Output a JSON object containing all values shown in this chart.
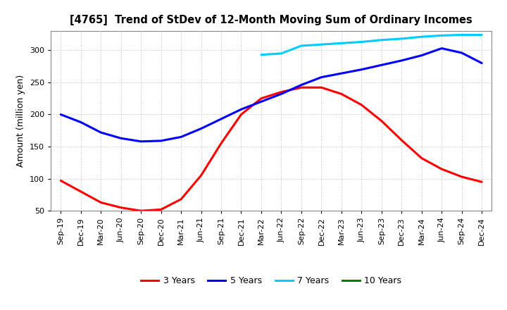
{
  "title": "[4765]  Trend of StDev of 12-Month Moving Sum of Ordinary Incomes",
  "ylabel": "Amount (million yen)",
  "ylim": [
    50,
    330
  ],
  "yticks": [
    50,
    100,
    150,
    200,
    250,
    300
  ],
  "background_color": "#ffffff",
  "plot_bg_color": "#ffffff",
  "grid_color": "#b0b0b0",
  "series": {
    "3 Years": {
      "color": "#ff0000",
      "x_indices": [
        0,
        1,
        2,
        3,
        4,
        5,
        6,
        7,
        8,
        9,
        10,
        11,
        12,
        13,
        14,
        15,
        16,
        17,
        18,
        19,
        20,
        21
      ],
      "y": [
        97,
        80,
        63,
        55,
        50,
        52,
        68,
        105,
        155,
        200,
        225,
        235,
        242,
        242,
        232,
        215,
        190,
        160,
        132,
        115,
        103,
        95
      ]
    },
    "5 Years": {
      "color": "#0000ff",
      "x_indices": [
        0,
        1,
        2,
        3,
        4,
        5,
        6,
        7,
        8,
        9,
        10,
        11,
        12,
        13,
        14,
        15,
        16,
        17,
        18,
        19,
        20,
        21
      ],
      "y": [
        200,
        188,
        172,
        163,
        158,
        159,
        165,
        178,
        193,
        208,
        220,
        232,
        246,
        258,
        264,
        270,
        277,
        284,
        292,
        303,
        296,
        280
      ]
    },
    "7 Years": {
      "color": "#00ccff",
      "x_indices": [
        10,
        11,
        12,
        13,
        14,
        15,
        16,
        17,
        18,
        19,
        20,
        21
      ],
      "y": [
        293,
        295,
        307,
        309,
        311,
        313,
        316,
        318,
        321,
        323,
        324,
        324
      ]
    },
    "10 Years": {
      "color": "#008000",
      "x_indices": [],
      "y": []
    }
  },
  "x_labels": [
    "Sep-19",
    "Dec-19",
    "Mar-20",
    "Jun-20",
    "Sep-20",
    "Dec-20",
    "Mar-21",
    "Jun-21",
    "Sep-21",
    "Dec-21",
    "Mar-22",
    "Jun-22",
    "Sep-22",
    "Dec-22",
    "Mar-23",
    "Jun-23",
    "Sep-23",
    "Dec-23",
    "Mar-24",
    "Jun-24",
    "Sep-24",
    "Dec-24"
  ],
  "legend_order": [
    "3 Years",
    "5 Years",
    "7 Years",
    "10 Years"
  ],
  "legend_colors": {
    "3 Years": "#ff0000",
    "5 Years": "#0000ff",
    "7 Years": "#00ccff",
    "10 Years": "#008000"
  },
  "linewidth": 2.2,
  "title_fontsize": 10.5,
  "ylabel_fontsize": 9,
  "tick_fontsize": 8
}
